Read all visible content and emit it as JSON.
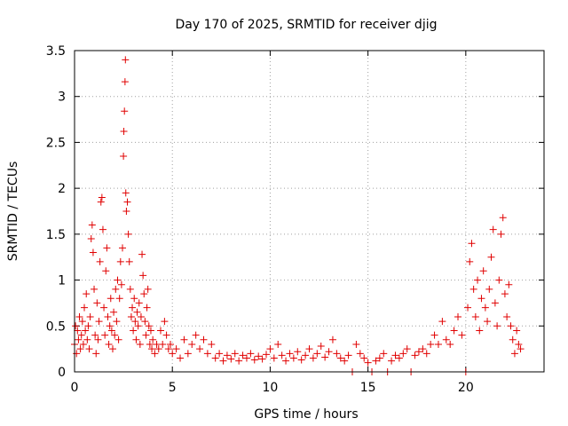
{
  "chart_data": {
    "type": "scatter",
    "title": "Day 170 of 2025, SRMTID for receiver djig",
    "xlabel": "GPS time / hours",
    "ylabel": "SRMTID / TECUs",
    "xlim": [
      0,
      24
    ],
    "ylim": [
      0,
      3.5
    ],
    "x_ticks": [
      0,
      5,
      10,
      15,
      20
    ],
    "x_tick_labels": [
      "0",
      "5",
      "10",
      "15",
      "20"
    ],
    "y_ticks": [
      0,
      0.5,
      1,
      1.5,
      2,
      2.5,
      3,
      3.5
    ],
    "y_tick_labels": [
      "0",
      "0.5",
      "1",
      "1.5",
      "2",
      "2.5",
      "3",
      "3.5"
    ],
    "grid": true,
    "marker": "plus",
    "marker_color": "#e00000",
    "series": [
      {
        "name": "SRMTID",
        "points": [
          [
            0.0,
            0.3
          ],
          [
            0.05,
            0.5
          ],
          [
            0.1,
            0.2
          ],
          [
            0.15,
            0.45
          ],
          [
            0.2,
            0.35
          ],
          [
            0.25,
            0.6
          ],
          [
            0.3,
            0.25
          ],
          [
            0.35,
            0.4
          ],
          [
            0.4,
            0.55
          ],
          [
            0.45,
            0.3
          ],
          [
            0.5,
            0.7
          ],
          [
            0.55,
            0.45
          ],
          [
            0.6,
            0.85
          ],
          [
            0.65,
            0.35
          ],
          [
            0.7,
            0.5
          ],
          [
            0.75,
            0.25
          ],
          [
            0.8,
            0.6
          ],
          [
            0.85,
            1.45
          ],
          [
            0.9,
            1.6
          ],
          [
            0.95,
            1.3
          ],
          [
            1.0,
            0.9
          ],
          [
            1.05,
            0.4
          ],
          [
            1.1,
            0.2
          ],
          [
            1.15,
            0.75
          ],
          [
            1.2,
            0.35
          ],
          [
            1.25,
            0.55
          ],
          [
            1.3,
            1.2
          ],
          [
            1.35,
            1.85
          ],
          [
            1.4,
            1.9
          ],
          [
            1.45,
            1.55
          ],
          [
            1.5,
            0.7
          ],
          [
            1.55,
            0.4
          ],
          [
            1.6,
            1.1
          ],
          [
            1.65,
            1.35
          ],
          [
            1.7,
            0.6
          ],
          [
            1.75,
            0.3
          ],
          [
            1.8,
            0.5
          ],
          [
            1.85,
            0.8
          ],
          [
            1.9,
            0.45
          ],
          [
            1.95,
            0.25
          ],
          [
            2.0,
            0.65
          ],
          [
            2.05,
            0.4
          ],
          [
            2.1,
            0.9
          ],
          [
            2.15,
            0.55
          ],
          [
            2.2,
            1.0
          ],
          [
            2.25,
            0.35
          ],
          [
            2.3,
            0.8
          ],
          [
            2.35,
            1.2
          ],
          [
            2.4,
            0.95
          ],
          [
            2.45,
            1.35
          ],
          [
            2.5,
            2.35
          ],
          [
            2.52,
            2.62
          ],
          [
            2.55,
            2.84
          ],
          [
            2.58,
            3.16
          ],
          [
            2.6,
            3.4
          ],
          [
            2.62,
            1.95
          ],
          [
            2.65,
            1.75
          ],
          [
            2.7,
            1.85
          ],
          [
            2.75,
            1.5
          ],
          [
            2.8,
            1.2
          ],
          [
            2.85,
            0.9
          ],
          [
            2.9,
            0.6
          ],
          [
            2.95,
            0.7
          ],
          [
            3.0,
            0.45
          ],
          [
            3.05,
            0.8
          ],
          [
            3.1,
            0.55
          ],
          [
            3.15,
            0.35
          ],
          [
            3.2,
            0.65
          ],
          [
            3.25,
            0.5
          ],
          [
            3.3,
            0.75
          ],
          [
            3.35,
            0.3
          ],
          [
            3.4,
            0.6
          ],
          [
            3.45,
            1.28
          ],
          [
            3.5,
            1.05
          ],
          [
            3.55,
            0.85
          ],
          [
            3.6,
            0.55
          ],
          [
            3.65,
            0.4
          ],
          [
            3.7,
            0.7
          ],
          [
            3.75,
            0.9
          ],
          [
            3.8,
            0.5
          ],
          [
            3.85,
            0.3
          ],
          [
            3.9,
            0.45
          ],
          [
            3.95,
            0.25
          ],
          [
            4.0,
            0.35
          ],
          [
            4.1,
            0.2
          ],
          [
            4.2,
            0.3
          ],
          [
            4.3,
            0.25
          ],
          [
            4.4,
            0.45
          ],
          [
            4.5,
            0.3
          ],
          [
            4.6,
            0.55
          ],
          [
            4.7,
            0.4
          ],
          [
            4.8,
            0.25
          ],
          [
            4.9,
            0.3
          ],
          [
            5.0,
            0.2
          ],
          [
            5.2,
            0.25
          ],
          [
            5.4,
            0.15
          ],
          [
            5.6,
            0.35
          ],
          [
            5.8,
            0.2
          ],
          [
            6.0,
            0.3
          ],
          [
            6.2,
            0.4
          ],
          [
            6.4,
            0.25
          ],
          [
            6.6,
            0.35
          ],
          [
            6.8,
            0.2
          ],
          [
            7.0,
            0.3
          ],
          [
            7.2,
            0.15
          ],
          [
            7.4,
            0.2
          ],
          [
            7.6,
            0.12
          ],
          [
            7.8,
            0.18
          ],
          [
            8.0,
            0.14
          ],
          [
            8.2,
            0.2
          ],
          [
            8.4,
            0.12
          ],
          [
            8.6,
            0.18
          ],
          [
            8.8,
            0.15
          ],
          [
            9.0,
            0.2
          ],
          [
            9.2,
            0.13
          ],
          [
            9.4,
            0.17
          ],
          [
            9.6,
            0.14
          ],
          [
            9.8,
            0.19
          ],
          [
            10.0,
            0.25
          ],
          [
            10.2,
            0.15
          ],
          [
            10.4,
            0.3
          ],
          [
            10.6,
            0.18
          ],
          [
            10.8,
            0.12
          ],
          [
            11.0,
            0.2
          ],
          [
            11.2,
            0.15
          ],
          [
            11.4,
            0.22
          ],
          [
            11.6,
            0.13
          ],
          [
            11.8,
            0.18
          ],
          [
            12.0,
            0.25
          ],
          [
            12.2,
            0.15
          ],
          [
            12.4,
            0.2
          ],
          [
            12.6,
            0.28
          ],
          [
            12.8,
            0.16
          ],
          [
            13.0,
            0.22
          ],
          [
            13.2,
            0.35
          ],
          [
            13.4,
            0.2
          ],
          [
            13.6,
            0.15
          ],
          [
            13.8,
            0.12
          ],
          [
            14.0,
            0.18
          ],
          [
            14.2,
            0.0
          ],
          [
            14.4,
            0.3
          ],
          [
            14.6,
            0.2
          ],
          [
            14.8,
            0.15
          ],
          [
            15.0,
            0.1
          ],
          [
            15.2,
            0.0
          ],
          [
            15.4,
            0.12
          ],
          [
            15.6,
            0.15
          ],
          [
            15.8,
            0.2
          ],
          [
            16.0,
            0.0
          ],
          [
            16.2,
            0.12
          ],
          [
            16.4,
            0.18
          ],
          [
            16.6,
            0.15
          ],
          [
            16.8,
            0.2
          ],
          [
            17.0,
            0.25
          ],
          [
            17.2,
            0.0
          ],
          [
            17.4,
            0.18
          ],
          [
            17.6,
            0.22
          ],
          [
            17.8,
            0.25
          ],
          [
            18.0,
            0.2
          ],
          [
            18.2,
            0.3
          ],
          [
            18.4,
            0.4
          ],
          [
            18.6,
            0.3
          ],
          [
            18.8,
            0.55
          ],
          [
            19.0,
            0.35
          ],
          [
            19.2,
            0.3
          ],
          [
            19.4,
            0.45
          ],
          [
            19.6,
            0.6
          ],
          [
            19.8,
            0.4
          ],
          [
            20.0,
            0.0
          ],
          [
            20.1,
            0.7
          ],
          [
            20.2,
            1.2
          ],
          [
            20.3,
            1.4
          ],
          [
            20.4,
            0.9
          ],
          [
            20.5,
            0.6
          ],
          [
            20.6,
            1.0
          ],
          [
            20.7,
            0.45
          ],
          [
            20.8,
            0.8
          ],
          [
            20.9,
            1.1
          ],
          [
            21.0,
            0.7
          ],
          [
            21.1,
            0.55
          ],
          [
            21.2,
            0.9
          ],
          [
            21.3,
            1.25
          ],
          [
            21.4,
            1.55
          ],
          [
            21.5,
            0.75
          ],
          [
            21.6,
            0.5
          ],
          [
            21.7,
            1.0
          ],
          [
            21.8,
            1.5
          ],
          [
            21.9,
            1.68
          ],
          [
            22.0,
            0.85
          ],
          [
            22.1,
            0.6
          ],
          [
            22.2,
            0.95
          ],
          [
            22.3,
            0.5
          ],
          [
            22.4,
            0.35
          ],
          [
            22.5,
            0.2
          ],
          [
            22.6,
            0.45
          ],
          [
            22.7,
            0.3
          ],
          [
            22.8,
            0.25
          ]
        ]
      }
    ]
  }
}
